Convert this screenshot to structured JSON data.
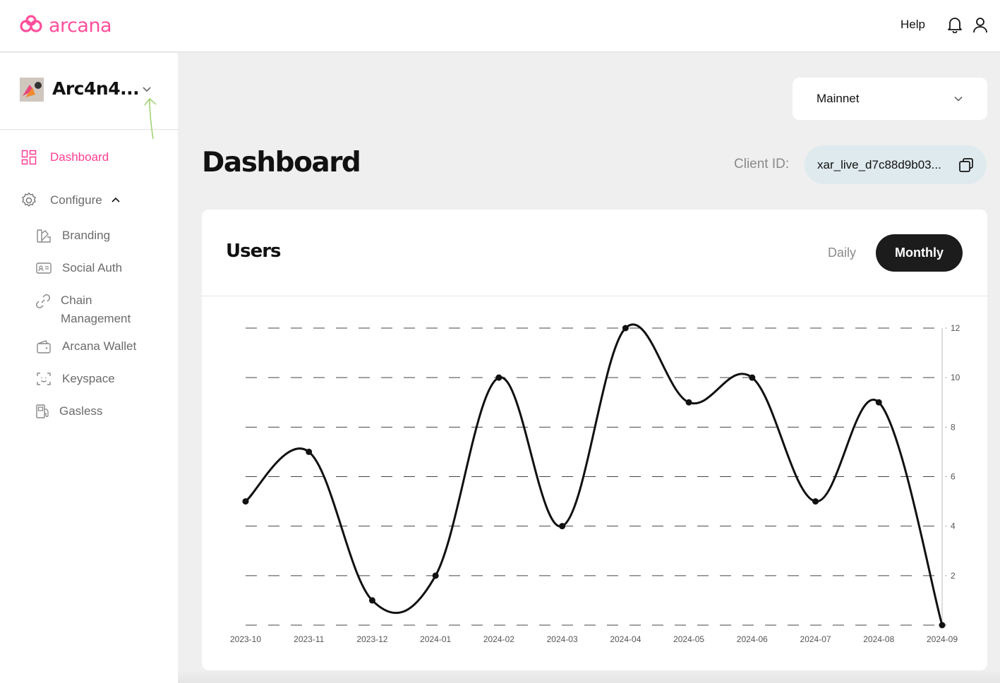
{
  "header": {
    "brand": "arcana",
    "help_label": "Help",
    "icons": [
      "arcana-logo-icon",
      "bell-icon",
      "user-icon"
    ],
    "brand_color": "#ff4f9b"
  },
  "sidebar": {
    "app_name": "Arc4n4...",
    "items": [
      {
        "label": "Dashboard",
        "icon": "dashboard-grid-icon",
        "active": true
      },
      {
        "label": "Configure",
        "icon": "gear-icon",
        "expanded": true
      },
      {
        "label": "Branding",
        "icon": "branding-swatch-icon"
      },
      {
        "label": "Social Auth",
        "icon": "id-card-icon"
      },
      {
        "label": "Chain\nManagement",
        "icon": "link-icon"
      },
      {
        "label": "Arcana Wallet",
        "icon": "wallet-icon"
      },
      {
        "label": "Keyspace",
        "icon": "face-scan-icon"
      },
      {
        "label": "Gasless",
        "icon": "fuel-pump-icon"
      }
    ]
  },
  "main": {
    "network": "Mainnet",
    "title": "Dashboard",
    "client_id_label": "Client ID:",
    "client_id_value": "xar_live_d7c88d9b03...",
    "card": {
      "title": "Users",
      "tabs": [
        "Daily",
        "Monthly"
      ],
      "selected_tab": "Monthly"
    }
  },
  "chart_data": {
    "type": "line",
    "categories": [
      "2023-10",
      "2023-11",
      "2023-12",
      "2024-01",
      "2024-02",
      "2024-03",
      "2024-04",
      "2024-05",
      "2024-06",
      "2024-07",
      "2024-08",
      "2024-09"
    ],
    "values": [
      5,
      7,
      1,
      2,
      10,
      4,
      12,
      9,
      10,
      5,
      9,
      0
    ],
    "yticks": [
      2,
      4,
      6,
      8,
      10,
      12
    ],
    "ylim": [
      0,
      12
    ],
    "grid": "dashed-horizontal",
    "y_axis_position": "right",
    "line_color": "#111111"
  }
}
